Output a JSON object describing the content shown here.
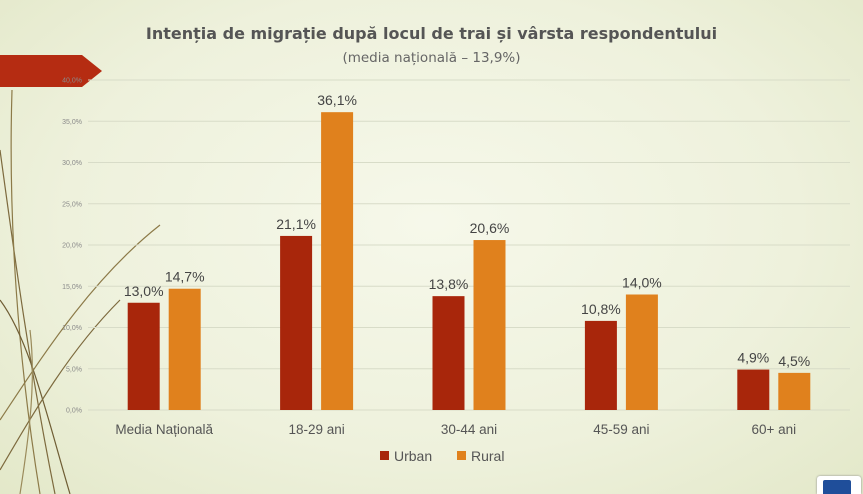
{
  "colors": {
    "urban": "#a8260b",
    "rural": "#e0811d",
    "arrow": "#b52c12",
    "grid": "#d8dcc8",
    "deco_line": "#7d6a3e"
  },
  "chart_data": {
    "type": "bar",
    "title": "Intenția de migrație după locul de trai și vârsta respondentului",
    "subtitle": "(media națională – 13,9%)",
    "categories": [
      "Media Națională",
      "18-29 ani",
      "30-44 ani",
      "45-59 ani",
      "60+ ani"
    ],
    "series": [
      {
        "name": "Urban",
        "values": [
          13.0,
          21.1,
          13.8,
          10.8,
          4.9
        ],
        "labels": [
          "13,0%",
          "21,1%",
          "13,8%",
          "10,8%",
          "4,9%"
        ]
      },
      {
        "name": "Rural",
        "values": [
          14.7,
          36.1,
          20.6,
          14.0,
          4.5
        ],
        "labels": [
          "14,7%",
          "36,1%",
          "20,6%",
          "14,0%",
          "4,5%"
        ]
      }
    ],
    "ylim": [
      0,
      40
    ],
    "yticks": [
      0,
      5,
      10,
      15,
      20,
      25,
      30,
      35,
      40
    ],
    "ytick_labels": [
      "0,0%",
      "5,0%",
      "10,0%",
      "15,0%",
      "20,0%",
      "25,0%",
      "30,0%",
      "35,0%",
      "40,0%"
    ],
    "grid": true,
    "legend_position": "bottom"
  }
}
